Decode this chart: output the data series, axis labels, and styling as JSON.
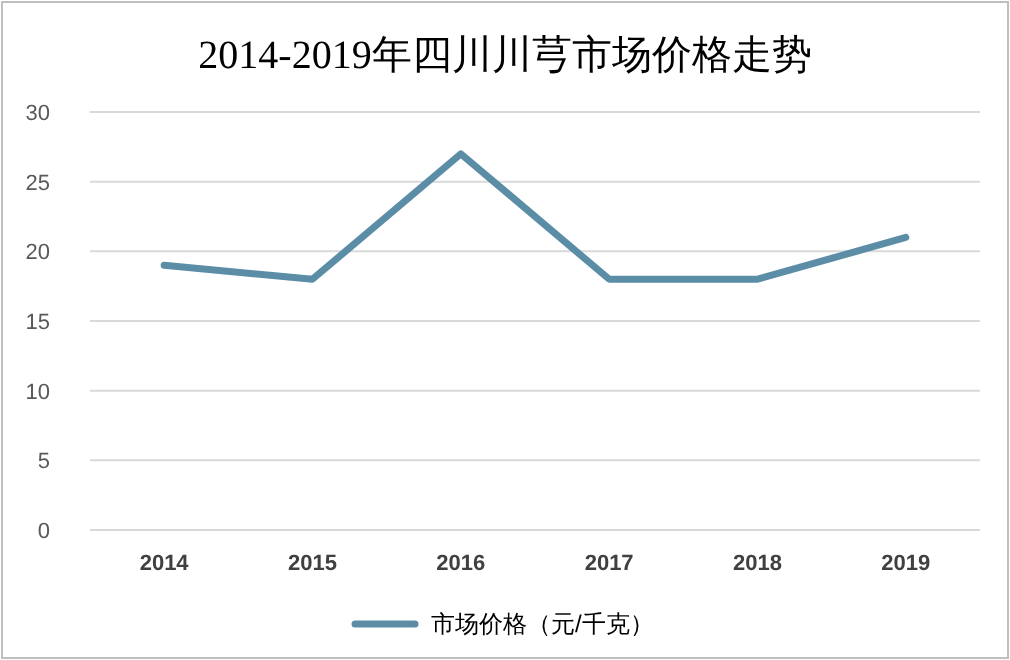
{
  "chart_data": {
    "type": "line",
    "title": "2014-2019年四川川芎市场价格走势",
    "categories": [
      "2014",
      "2015",
      "2016",
      "2017",
      "2018",
      "2019"
    ],
    "series": [
      {
        "name": "市场价格（元/千克）",
        "color": "#5b8ea6",
        "values": [
          19,
          18,
          27,
          18,
          18,
          21
        ]
      }
    ],
    "ylim": [
      0,
      30
    ],
    "yticks": [
      0,
      5,
      10,
      15,
      20,
      25,
      30
    ],
    "grid": "y",
    "legend": "bottom"
  }
}
